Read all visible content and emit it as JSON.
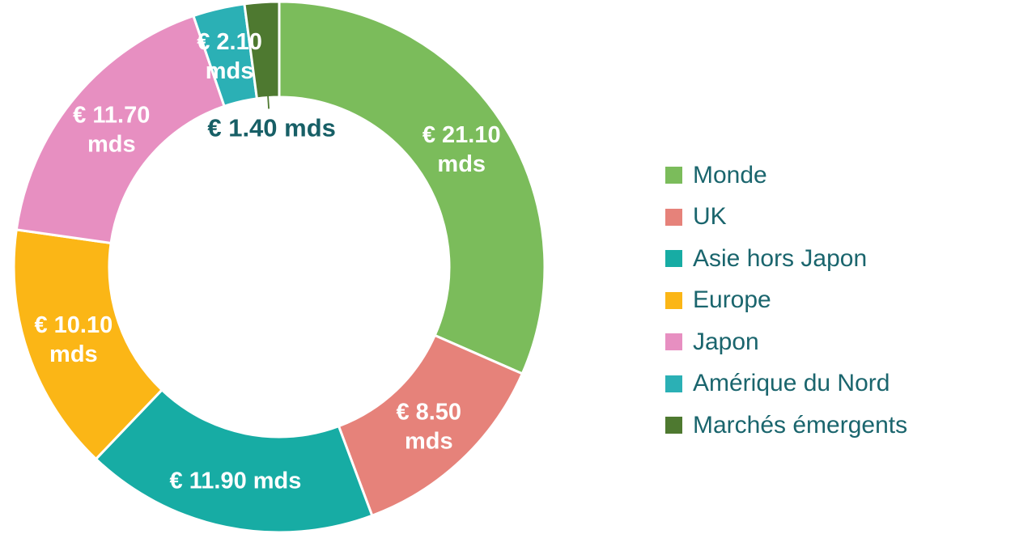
{
  "chart_data": {
    "type": "pie",
    "subtype": "donut",
    "legend_position": "right",
    "direction": "clockwise",
    "start_angle_deg": 0,
    "label_text_color": "#FFFFFF",
    "outside_label_color": "#175F66",
    "legend_text_color": "#1A656D",
    "separator_color": "#FFFFFF",
    "segments": [
      {
        "label": "Monde",
        "value": 21.1,
        "value_label_lines": [
          "€ 21.10",
          "mds"
        ],
        "color": "#7BBC5B"
      },
      {
        "label": "UK",
        "value": 8.5,
        "value_label_lines": [
          "€ 8.50",
          "mds"
        ],
        "color": "#E6827A"
      },
      {
        "label": "Asie hors Japon",
        "value": 11.9,
        "value_label_lines": [
          "€ 11.90 mds"
        ],
        "color": "#17ACA4"
      },
      {
        "label": "Europe",
        "value": 10.1,
        "value_label_lines": [
          "€ 10.10",
          "mds"
        ],
        "color": "#FBB616"
      },
      {
        "label": "Japon",
        "value": 11.7,
        "value_label_lines": [
          "€ 11.70",
          "mds"
        ],
        "color": "#E78FC1"
      },
      {
        "label": "Amérique du Nord",
        "value": 2.1,
        "value_label_lines": [
          "€ 2.10",
          "mds"
        ],
        "color": "#2BB0B5"
      },
      {
        "label": "Marchés émergents",
        "value": 1.4,
        "value_label_lines": [
          "€ 1.40 mds"
        ],
        "color": "#4E7930",
        "label_outside": true
      }
    ]
  }
}
